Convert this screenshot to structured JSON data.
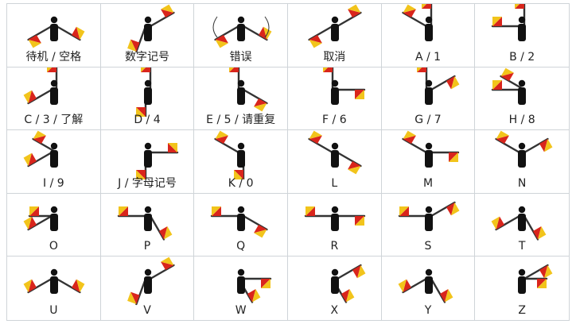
{
  "colors": {
    "flag_red": "#d9251c",
    "flag_yellow": "#f2c41b",
    "arm": "#333333",
    "body": "#111111",
    "grid": "#cfd4d8"
  },
  "signals": [
    {
      "label": "待机 / 空格",
      "arms": [
        [
          -150,
          0
        ],
        [
          -30,
          0
        ]
      ],
      "standby": true
    },
    {
      "label": "数字记号",
      "arms": [
        [
          -110,
          1
        ],
        [
          30,
          0
        ]
      ]
    },
    {
      "label": "错误",
      "arms": [
        [
          -150,
          0
        ],
        [
          -30,
          0
        ]
      ],
      "waving": true
    },
    {
      "label": "取消",
      "arms": [
        [
          -150,
          0
        ],
        [
          30,
          0
        ]
      ]
    },
    {
      "label": "A / 1",
      "arms": [
        [
          150,
          1
        ],
        [
          90,
          0
        ]
      ]
    },
    {
      "label": "B / 2",
      "arms": [
        [
          180,
          1
        ],
        [
          90,
          0
        ]
      ]
    },
    {
      "label": "C / 3 / 了解",
      "arms": [
        [
          -150,
          1
        ],
        [
          90,
          0
        ]
      ]
    },
    {
      "label": "D / 4",
      "arms": [
        [
          -90,
          1
        ],
        [
          90,
          0
        ]
      ]
    },
    {
      "label": "E / 5 / 请重复",
      "arms": [
        [
          90,
          0
        ],
        [
          -30,
          1
        ]
      ]
    },
    {
      "label": "F / 6",
      "arms": [
        [
          90,
          0
        ],
        [
          0,
          1
        ]
      ]
    },
    {
      "label": "G / 7",
      "arms": [
        [
          90,
          0
        ],
        [
          30,
          1
        ]
      ]
    },
    {
      "label": "H / 8",
      "arms": [
        [
          180,
          1
        ],
        [
          150,
          1
        ]
      ]
    },
    {
      "label": "I / 9",
      "arms": [
        [
          -150,
          1
        ],
        [
          150,
          1
        ]
      ]
    },
    {
      "label": "J / 字母记号",
      "arms": [
        [
          -90,
          1
        ],
        [
          0,
          0
        ]
      ]
    },
    {
      "label": "K / 0",
      "arms": [
        [
          150,
          1
        ],
        [
          -90,
          1
        ]
      ]
    },
    {
      "label": "L",
      "arms": [
        [
          150,
          1
        ],
        [
          -30,
          1
        ]
      ]
    },
    {
      "label": "M",
      "arms": [
        [
          150,
          1
        ],
        [
          0,
          1
        ]
      ]
    },
    {
      "label": "N",
      "arms": [
        [
          150,
          1
        ],
        [
          30,
          1
        ]
      ]
    },
    {
      "label": "O",
      "arms": [
        [
          -150,
          1
        ],
        [
          180,
          1
        ]
      ]
    },
    {
      "label": "P",
      "arms": [
        [
          180,
          1
        ],
        [
          -60,
          0
        ]
      ]
    },
    {
      "label": "Q",
      "arms": [
        [
          180,
          1
        ],
        [
          -30,
          1
        ]
      ]
    },
    {
      "label": "R",
      "arms": [
        [
          180,
          1
        ],
        [
          0,
          1
        ]
      ]
    },
    {
      "label": "S",
      "arms": [
        [
          180,
          1
        ],
        [
          30,
          1
        ]
      ]
    },
    {
      "label": "T",
      "arms": [
        [
          -150,
          1
        ],
        [
          -60,
          0
        ]
      ]
    },
    {
      "label": "U",
      "arms": [
        [
          -150,
          1
        ],
        [
          -30,
          0
        ]
      ]
    },
    {
      "label": "V",
      "arms": [
        [
          -110,
          1
        ],
        [
          30,
          0
        ]
      ]
    },
    {
      "label": "W",
      "arms": [
        [
          -60,
          0
        ],
        [
          0,
          1
        ]
      ]
    },
    {
      "label": "X",
      "arms": [
        [
          -60,
          0
        ],
        [
          30,
          1
        ]
      ]
    },
    {
      "label": "Y",
      "arms": [
        [
          -150,
          1
        ],
        [
          -60,
          0
        ]
      ]
    },
    {
      "label": "Z",
      "arms": [
        [
          0,
          1
        ],
        [
          30,
          1
        ]
      ]
    }
  ]
}
